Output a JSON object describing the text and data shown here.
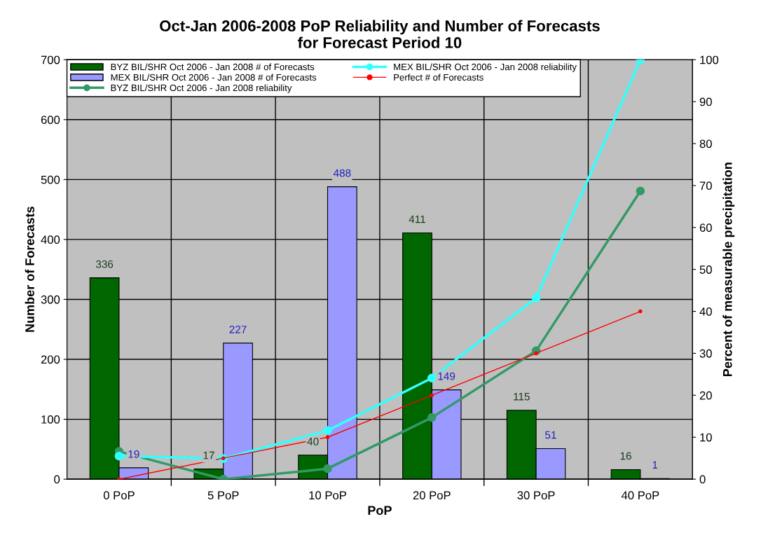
{
  "chart_data": {
    "type": "bar",
    "title": "Oct-Jan 2006-2008 PoP Reliability and Number of Forecasts\nfor Forecast Period 10",
    "xlabel": "PoP",
    "ylabel": "Number of Forecasts",
    "y2label": "Percent of measurable precipitation",
    "categories": [
      "0 PoP",
      "5 PoP",
      "10 PoP",
      "20 PoP",
      "30 PoP",
      "40 PoP"
    ],
    "series": [
      {
        "name": "BYZ BIL/SHR Oct 2006 - Jan 2008 # of Forecasts",
        "color": "#006600",
        "values": [
          336,
          17,
          40,
          411,
          115,
          16
        ],
        "value_labels": [
          "336",
          "17",
          "40",
          "411",
          "115",
          "16"
        ]
      },
      {
        "name": "MEX BIL/SHR Oct 2006 - Jan 2008 # of Forecasts",
        "color": "#9999ff",
        "values": [
          19,
          227,
          488,
          149,
          51,
          1
        ],
        "value_labels": [
          "19",
          "227",
          "488",
          "149",
          "51",
          "1"
        ]
      },
      {
        "name": "BYZ BIL/SHR Oct 2006 - Jan 2008 reliability",
        "type": "line",
        "axis": "y2",
        "color": "#339966",
        "values": [
          6.6,
          0,
          2.5,
          14.7,
          30.6,
          68.7
        ]
      },
      {
        "name": "MEX BIL/SHR Oct 2006 - Jan 2008 reliability",
        "type": "line",
        "axis": "y2",
        "color": "#33ffff",
        "values": [
          5.5,
          4.9,
          11.6,
          24.1,
          43.2,
          100
        ]
      },
      {
        "name": "Perfect # of Forecasts",
        "type": "line",
        "axis": "y2",
        "color": "#ff0000",
        "values": [
          0,
          5,
          10,
          20,
          30,
          40
        ]
      }
    ],
    "ylim": [
      0,
      700
    ],
    "yticks": [
      0,
      100,
      200,
      300,
      400,
      500,
      600,
      700
    ],
    "y2lim": [
      0,
      100
    ],
    "y2ticks": [
      0,
      10,
      20,
      30,
      40,
      50,
      60,
      70,
      80,
      90,
      100
    ],
    "grid": true,
    "legend": "top",
    "marker": "circle",
    "line_style": "solid"
  }
}
